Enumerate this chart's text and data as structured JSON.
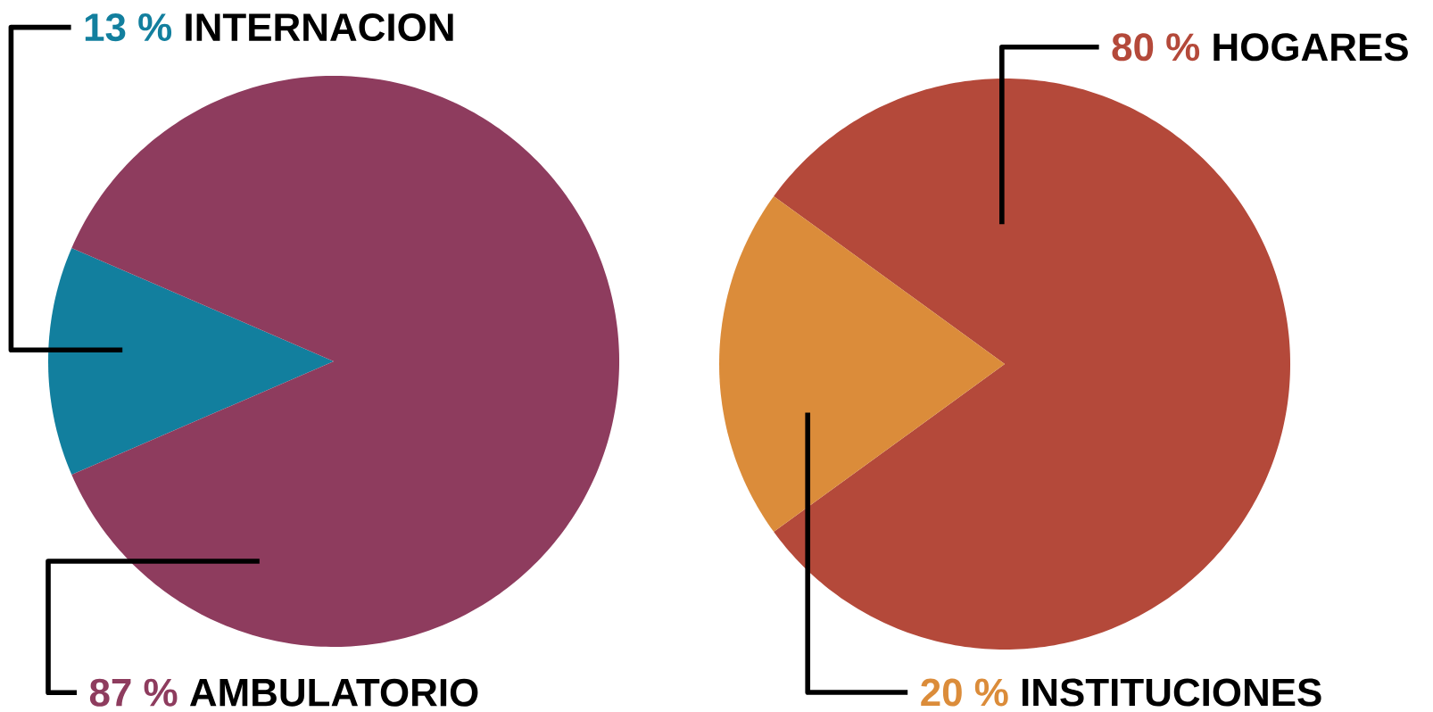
{
  "chart_data": [
    {
      "type": "pie",
      "categories": [
        "INTERNACION",
        "AMBULATORIO"
      ],
      "values": [
        13,
        87
      ],
      "colors": [
        "#127f9e",
        "#8e3c5e"
      ],
      "value_labels": [
        "13 %",
        "87 %"
      ]
    },
    {
      "type": "pie",
      "categories": [
        "HOGARES",
        "INSTITUCIONES"
      ],
      "values": [
        80,
        20
      ],
      "colors": [
        "#b4493a",
        "#db8c3a"
      ],
      "value_labels": [
        "80 %",
        "20 %"
      ]
    }
  ]
}
